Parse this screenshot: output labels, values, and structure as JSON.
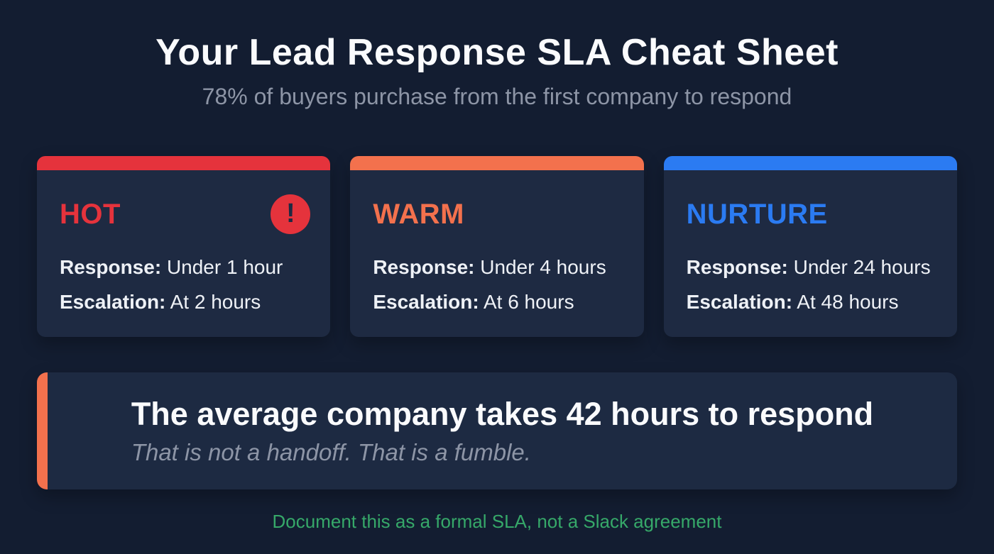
{
  "header": {
    "title": "Your Lead Response SLA Cheat Sheet",
    "subtitle": "78% of buyers purchase from the first company to respond"
  },
  "cards": [
    {
      "label": "HOT",
      "accent": "#e5333c",
      "icon": "alert-icon",
      "icon_glyph": "!",
      "response_label": "Response:",
      "response_value": "Under 1 hour",
      "escalation_label": "Escalation:",
      "escalation_value": "At 2 hours"
    },
    {
      "label": "WARM",
      "accent": "#f3714d",
      "response_label": "Response:",
      "response_value": "Under 4 hours",
      "escalation_label": "Escalation:",
      "escalation_value": "At 6 hours"
    },
    {
      "label": "NURTURE",
      "accent": "#2b7bf2",
      "response_label": "Response:",
      "response_value": "Under 24 hours",
      "escalation_label": "Escalation:",
      "escalation_value": "At 48 hours"
    }
  ],
  "callout": {
    "accent": "#f3714d",
    "heading": "The average company takes 42 hours to respond",
    "subtext": "That is not a handoff. That is a fumble."
  },
  "footer": {
    "note": "Document this as a formal SLA, not a Slack agreement",
    "color": "#36a869"
  },
  "colors": {
    "background": "#131d31",
    "card_background": "#1e2a42",
    "text": "#f2f4f8",
    "muted": "#8d95a6"
  }
}
